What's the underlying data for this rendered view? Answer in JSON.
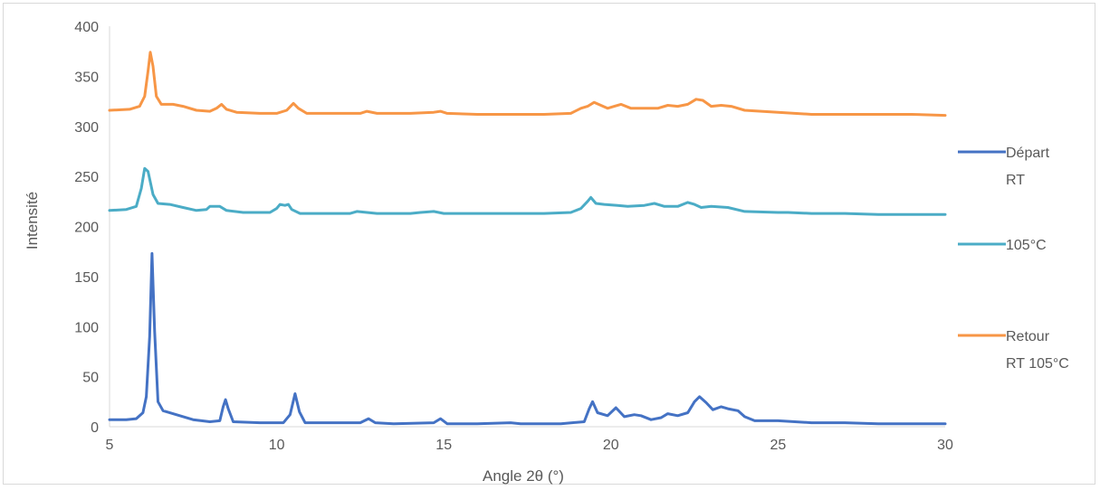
{
  "chart_data": {
    "type": "line",
    "title": "",
    "xlabel": "Angle 2θ (°)",
    "ylabel": "Intensité",
    "xlim": [
      5,
      30
    ],
    "ylim": [
      0,
      400
    ],
    "x_ticks": [
      "5",
      "10",
      "15",
      "20",
      "25",
      "30"
    ],
    "y_ticks": [
      "0",
      "50",
      "100",
      "150",
      "200",
      "250",
      "300",
      "350",
      "400"
    ],
    "grid": false,
    "legend_position": "right",
    "series": [
      {
        "name": "Départ RT",
        "legend_lines": [
          "Départ",
          "RT"
        ],
        "color": "#4472c4",
        "points": [
          [
            5.0,
            7
          ],
          [
            5.5,
            7
          ],
          [
            5.8,
            8
          ],
          [
            6.0,
            14
          ],
          [
            6.1,
            30
          ],
          [
            6.2,
            90
          ],
          [
            6.27,
            173
          ],
          [
            6.35,
            95
          ],
          [
            6.45,
            25
          ],
          [
            6.6,
            16
          ],
          [
            7.0,
            12
          ],
          [
            7.5,
            7
          ],
          [
            8.0,
            5
          ],
          [
            8.3,
            6
          ],
          [
            8.4,
            20
          ],
          [
            8.47,
            27
          ],
          [
            8.55,
            18
          ],
          [
            8.7,
            5
          ],
          [
            9.5,
            4
          ],
          [
            10.2,
            4
          ],
          [
            10.4,
            12
          ],
          [
            10.55,
            33
          ],
          [
            10.68,
            15
          ],
          [
            10.85,
            4
          ],
          [
            11.5,
            4
          ],
          [
            12.5,
            4
          ],
          [
            12.75,
            8
          ],
          [
            12.95,
            4
          ],
          [
            13.5,
            3
          ],
          [
            14.7,
            4
          ],
          [
            14.9,
            8
          ],
          [
            15.1,
            3
          ],
          [
            16.0,
            3
          ],
          [
            17.0,
            4
          ],
          [
            17.3,
            3
          ],
          [
            18.5,
            3
          ],
          [
            19.2,
            5
          ],
          [
            19.35,
            18
          ],
          [
            19.45,
            25
          ],
          [
            19.6,
            14
          ],
          [
            19.9,
            11
          ],
          [
            20.15,
            19
          ],
          [
            20.4,
            10
          ],
          [
            20.7,
            12
          ],
          [
            20.9,
            11
          ],
          [
            21.2,
            7
          ],
          [
            21.5,
            9
          ],
          [
            21.7,
            13
          ],
          [
            22.0,
            11
          ],
          [
            22.3,
            14
          ],
          [
            22.5,
            25
          ],
          [
            22.65,
            30
          ],
          [
            22.85,
            24
          ],
          [
            23.05,
            17
          ],
          [
            23.3,
            20
          ],
          [
            23.5,
            18
          ],
          [
            23.8,
            16
          ],
          [
            24.0,
            10
          ],
          [
            24.3,
            6
          ],
          [
            25.0,
            6
          ],
          [
            25.5,
            5
          ],
          [
            26.0,
            4
          ],
          [
            27.0,
            4
          ],
          [
            28.0,
            3
          ],
          [
            29.0,
            3
          ],
          [
            30.0,
            3
          ]
        ]
      },
      {
        "name": "105°C",
        "legend_lines": [
          "105°C"
        ],
        "color": "#4bacc6",
        "points": [
          [
            5.0,
            216
          ],
          [
            5.5,
            217
          ],
          [
            5.8,
            220
          ],
          [
            5.95,
            238
          ],
          [
            6.05,
            258
          ],
          [
            6.15,
            255
          ],
          [
            6.3,
            232
          ],
          [
            6.45,
            223
          ],
          [
            6.8,
            222
          ],
          [
            7.2,
            219
          ],
          [
            7.6,
            216
          ],
          [
            7.9,
            217
          ],
          [
            8.0,
            220
          ],
          [
            8.3,
            220
          ],
          [
            8.5,
            216
          ],
          [
            9.0,
            214
          ],
          [
            9.8,
            214
          ],
          [
            10.0,
            218
          ],
          [
            10.1,
            222
          ],
          [
            10.25,
            221
          ],
          [
            10.35,
            222
          ],
          [
            10.45,
            217
          ],
          [
            10.7,
            213
          ],
          [
            11.5,
            213
          ],
          [
            12.2,
            213
          ],
          [
            12.4,
            215
          ],
          [
            12.7,
            214
          ],
          [
            13.0,
            213
          ],
          [
            14.0,
            213
          ],
          [
            14.3,
            214
          ],
          [
            14.7,
            215
          ],
          [
            15.0,
            213
          ],
          [
            16.0,
            213
          ],
          [
            17.0,
            213
          ],
          [
            18.0,
            213
          ],
          [
            18.8,
            214
          ],
          [
            19.1,
            218
          ],
          [
            19.3,
            225
          ],
          [
            19.4,
            229
          ],
          [
            19.55,
            223
          ],
          [
            19.8,
            222
          ],
          [
            20.2,
            221
          ],
          [
            20.5,
            220
          ],
          [
            21.0,
            221
          ],
          [
            21.3,
            223
          ],
          [
            21.6,
            220
          ],
          [
            22.0,
            220
          ],
          [
            22.3,
            224
          ],
          [
            22.5,
            222
          ],
          [
            22.7,
            219
          ],
          [
            23.0,
            220
          ],
          [
            23.5,
            219
          ],
          [
            24.0,
            215
          ],
          [
            25.0,
            214
          ],
          [
            25.3,
            214
          ],
          [
            26.0,
            213
          ],
          [
            27.0,
            213
          ],
          [
            28.0,
            212
          ],
          [
            29.0,
            212
          ],
          [
            30.0,
            212
          ]
        ]
      },
      {
        "name": "Retour RT 105°C",
        "legend_lines": [
          "Retour",
          "RT 105°C"
        ],
        "color": "#f79646",
        "points": [
          [
            5.0,
            316
          ],
          [
            5.6,
            317
          ],
          [
            5.9,
            320
          ],
          [
            6.05,
            330
          ],
          [
            6.15,
            355
          ],
          [
            6.22,
            374
          ],
          [
            6.3,
            360
          ],
          [
            6.4,
            330
          ],
          [
            6.55,
            322
          ],
          [
            6.9,
            322
          ],
          [
            7.2,
            320
          ],
          [
            7.6,
            316
          ],
          [
            8.0,
            315
          ],
          [
            8.2,
            318
          ],
          [
            8.35,
            322
          ],
          [
            8.5,
            317
          ],
          [
            8.8,
            314
          ],
          [
            9.5,
            313
          ],
          [
            10.0,
            313
          ],
          [
            10.3,
            316
          ],
          [
            10.5,
            323
          ],
          [
            10.65,
            318
          ],
          [
            10.9,
            313
          ],
          [
            11.5,
            313
          ],
          [
            12.5,
            313
          ],
          [
            12.7,
            315
          ],
          [
            13.0,
            313
          ],
          [
            14.0,
            313
          ],
          [
            14.7,
            314
          ],
          [
            14.9,
            315
          ],
          [
            15.1,
            313
          ],
          [
            16.0,
            312
          ],
          [
            17.0,
            312
          ],
          [
            18.0,
            312
          ],
          [
            18.8,
            313
          ],
          [
            19.1,
            318
          ],
          [
            19.3,
            320
          ],
          [
            19.5,
            324
          ],
          [
            19.7,
            321
          ],
          [
            19.9,
            318
          ],
          [
            20.1,
            320
          ],
          [
            20.3,
            322
          ],
          [
            20.6,
            318
          ],
          [
            21.0,
            318
          ],
          [
            21.4,
            318
          ],
          [
            21.7,
            321
          ],
          [
            22.0,
            320
          ],
          [
            22.3,
            322
          ],
          [
            22.55,
            327
          ],
          [
            22.75,
            326
          ],
          [
            23.0,
            320
          ],
          [
            23.3,
            321
          ],
          [
            23.6,
            320
          ],
          [
            24.0,
            316
          ],
          [
            24.5,
            315
          ],
          [
            25.0,
            314
          ],
          [
            26.0,
            312
          ],
          [
            27.0,
            312
          ],
          [
            28.0,
            312
          ],
          [
            29.0,
            312
          ],
          [
            30.0,
            311
          ]
        ]
      }
    ]
  }
}
